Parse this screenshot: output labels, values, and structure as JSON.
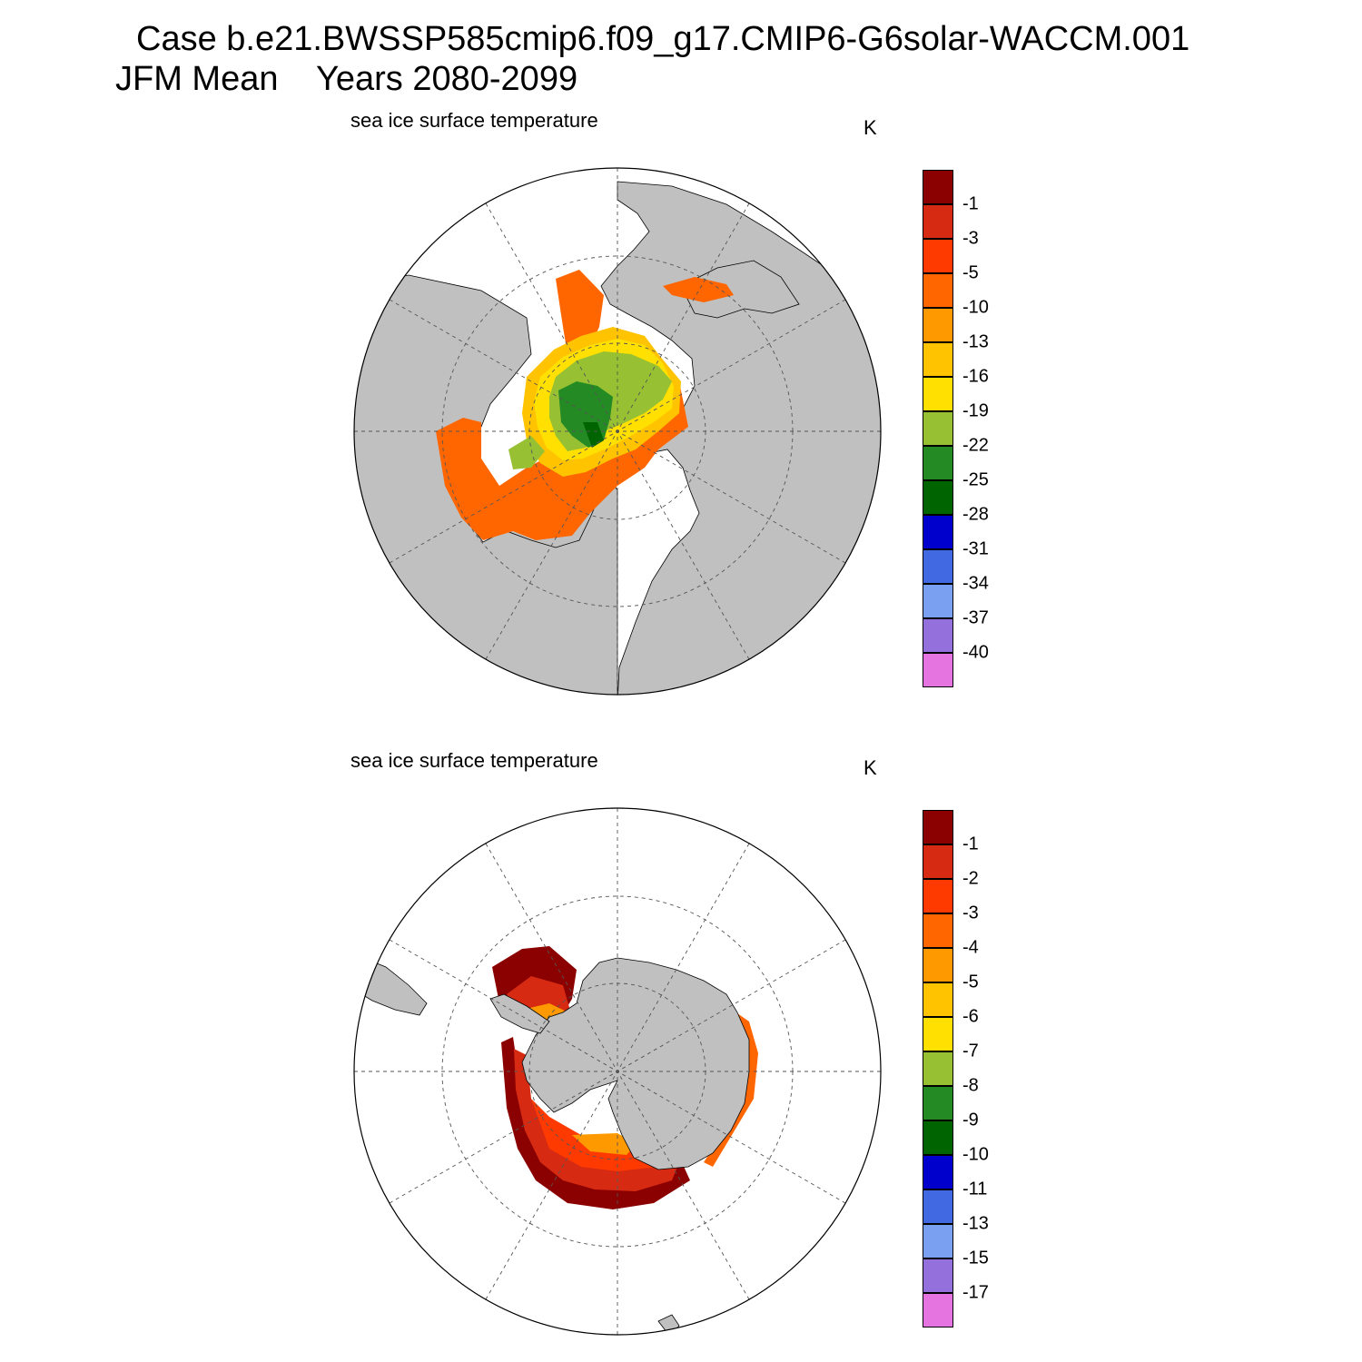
{
  "title_line1": "Case b.e21.BWSSP585cmip6.f09_g17.CMIP6-G6solar-WACCM.001",
  "title_line2": "JFM Mean    Years 2080-2099",
  "panels": [
    {
      "id": "nh",
      "subtitle": "sea ice surface temperature",
      "units": "K",
      "colorbar_labels": [
        "-1",
        "-3",
        "-5",
        "-10",
        "-13",
        "-16",
        "-19",
        "-22",
        "-25",
        "-28",
        "-31",
        "-34",
        "-37",
        "-40"
      ]
    },
    {
      "id": "sh",
      "subtitle": "sea ice surface temperature",
      "units": "K",
      "colorbar_labels": [
        "-1",
        "-2",
        "-3",
        "-4",
        "-5",
        "-6",
        "-7",
        "-8",
        "-9",
        "-10",
        "-11",
        "-13",
        "-15",
        "-17"
      ]
    }
  ],
  "colors": {
    "palette": [
      "#8b0000",
      "#d62b12",
      "#ff3a00",
      "#ff6600",
      "#ff9900",
      "#ffc300",
      "#ffe000",
      "#97c132",
      "#248b24",
      "#006400",
      "#0000cd",
      "#4169e1",
      "#7aa0f2",
      "#9370db",
      "#e674e0"
    ],
    "land": "#c0c0c0",
    "ocean": "#ffffff",
    "grid": "#555555"
  }
}
